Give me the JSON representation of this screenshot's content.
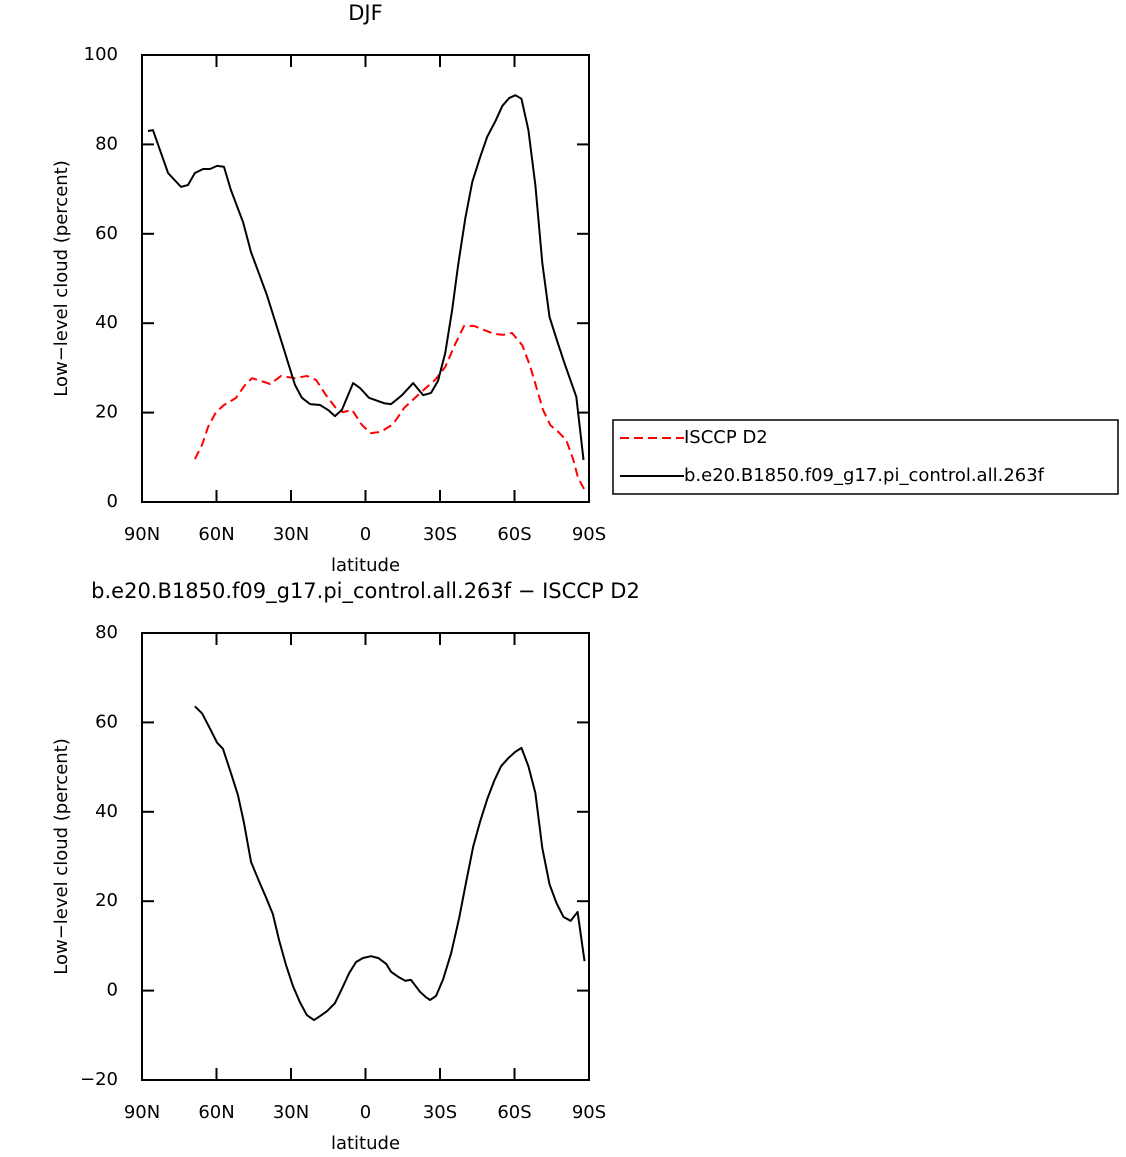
{
  "chart_data": [
    {
      "type": "line",
      "title": "DJF",
      "xlabel": "latitude",
      "ylabel": "Low−level cloud (percent)",
      "xlim": [
        90,
        -90
      ],
      "ylim": [
        0,
        100
      ],
      "xticks": [
        {
          "value": 90,
          "label": "90N"
        },
        {
          "value": 60,
          "label": "60N"
        },
        {
          "value": 30,
          "label": "30N"
        },
        0,
        {
          "value": -30,
          "label": "30S"
        },
        {
          "value": -60,
          "label": "60S"
        },
        {
          "value": -90,
          "label": "90S"
        }
      ],
      "yticks": [
        0,
        20,
        40,
        60,
        80,
        100
      ],
      "legend": "right",
      "series": [
        {
          "name": "ISCCP D2",
          "color": "#ff0000",
          "dash": true,
          "x": [
            68.7,
            65.8,
            63.4,
            60.2,
            57,
            52.1,
            48.5,
            45.7,
            43.3,
            38.4,
            34,
            28.4,
            23.6,
            19.9,
            15.9,
            11.9,
            9.1,
            5.4,
            1.4,
            -2.2,
            -6.2,
            -11.1,
            -15.5,
            -20.3,
            -23.9,
            -28,
            -32.1,
            -36.1,
            -39.7,
            -43.7,
            -47.7,
            -51.8,
            -55.4,
            -59,
            -63.1,
            -66.3,
            -69.1,
            -71.5,
            -74.4,
            -77.6,
            -80.8,
            -83.6,
            -85.6,
            -88.4
          ],
          "values": [
            9.6,
            12.8,
            16.8,
            20.1,
            21.7,
            23.3,
            26.2,
            27.7,
            27.3,
            26.4,
            28.2,
            27.7,
            28.2,
            27.3,
            23.9,
            21,
            20.1,
            20.6,
            17.2,
            15.4,
            15.7,
            17.4,
            21,
            23.5,
            25.3,
            27.3,
            30.2,
            35.3,
            39.4,
            39.4,
            38.5,
            37.6,
            37.4,
            37.8,
            35.1,
            30.4,
            25.1,
            20.6,
            17.2,
            15.7,
            13.9,
            9.6,
            5.4,
            2.5
          ]
        },
        {
          "name": "b.e20.B1850.f09_g17.pi_control.all.263f",
          "color": "#000000",
          "dash": false,
          "x": [
            87.6,
            85.6,
            79.5,
            74.3,
            71.5,
            68.7,
            65.4,
            62.6,
            59.8,
            57,
            54.2,
            49.3,
            46.1,
            39.7,
            34,
            28.4,
            25.6,
            22.3,
            18.3,
            15.1,
            12.3,
            9.5,
            5,
            2.2,
            -1.4,
            -7.5,
            -10.3,
            -14.7,
            -19.2,
            -23.2,
            -26.4,
            -29.2,
            -32.1,
            -34.9,
            -37.3,
            -40.2,
            -43,
            -46.2,
            -49,
            -52.3,
            -55.1,
            -57.9,
            -60.4,
            -62.8,
            -65.6,
            -68.4,
            -71.2,
            -74.1,
            -77.3,
            -80.1,
            -84.9,
            -87.8
          ],
          "values": [
            83,
            83.2,
            73.6,
            70.5,
            70.9,
            73.6,
            74.5,
            74.5,
            75.2,
            75,
            69.8,
            62.6,
            55.9,
            46.3,
            36.2,
            26.2,
            23.3,
            21.9,
            21.7,
            20.6,
            19.2,
            20.6,
            26.6,
            25.5,
            23.3,
            22.1,
            21.9,
            23.9,
            26.6,
            23.9,
            24.4,
            27.1,
            33.3,
            43,
            53,
            63.5,
            71.6,
            77.2,
            81.7,
            85.2,
            88.6,
            90.4,
            91,
            90.2,
            83.2,
            70.9,
            53.5,
            41.4,
            35.8,
            31.1,
            23.5,
            9.4
          ]
        }
      ]
    },
    {
      "type": "line",
      "title": "b.e20.B1850.f09_g17.pi_control.all.263f − ISCCP D2",
      "xlabel": "latitude",
      "ylabel": "Low−level cloud (percent)",
      "xlim": [
        90,
        -90
      ],
      "ylim": [
        -20,
        80
      ],
      "xticks": [
        {
          "value": 90,
          "label": "90N"
        },
        {
          "value": 60,
          "label": "60N"
        },
        {
          "value": 30,
          "label": "30N"
        },
        0,
        {
          "value": -30,
          "label": "30S"
        },
        {
          "value": -60,
          "label": "60S"
        },
        {
          "value": -90,
          "label": "90S"
        }
      ],
      "yticks": [
        {
          "value": -20,
          "label": "−20"
        },
        0,
        20,
        40,
        60,
        80
      ],
      "series": [
        {
          "color": "#000000",
          "dash": false,
          "x": [
            68.7,
            65.8,
            62.6,
            59.8,
            57.4,
            54.2,
            51.4,
            49,
            46.1,
            42.9,
            40.1,
            37.3,
            34.8,
            32,
            29.2,
            26.4,
            23.6,
            20.7,
            18.3,
            15.5,
            12.3,
            9.5,
            6.6,
            3.8,
            1,
            -2.2,
            -5.1,
            -8.3,
            -10.3,
            -13.1,
            -16,
            -18.3,
            -22,
            -24.4,
            -26,
            -28.4,
            -31.3,
            -34.5,
            -37.7,
            -40.6,
            -43.4,
            -46.2,
            -49,
            -51.8,
            -54.6,
            -57.5,
            -60.3,
            -62.8,
            -65.6,
            -68.4,
            -71.2,
            -74.1,
            -76.9,
            -79.7,
            -82.6,
            -85.4,
            -88.2
          ],
          "values": [
            63.6,
            62,
            58.6,
            55.5,
            54.1,
            48.7,
            43.8,
            37.7,
            28.8,
            24.5,
            20.9,
            17.1,
            11.3,
            5.7,
            1,
            -2.6,
            -5.5,
            -6.6,
            -5.7,
            -4.6,
            -2.8,
            0.4,
            3.9,
            6.4,
            7.3,
            7.7,
            7.3,
            6,
            4.2,
            3.1,
            2.2,
            2.4,
            -0.3,
            -1.5,
            -2.1,
            -1.2,
            2.6,
            8.4,
            16.2,
            24.5,
            32.3,
            37.9,
            42.8,
            46.9,
            50.2,
            52,
            53.4,
            54.3,
            50.2,
            44.2,
            31.9,
            23.8,
            19.6,
            16.5,
            15.6,
            17.6,
            6.6
          ]
        }
      ]
    }
  ]
}
